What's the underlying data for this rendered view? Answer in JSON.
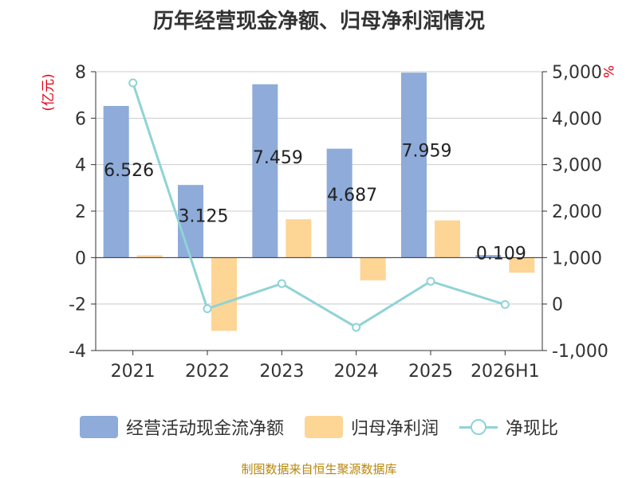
{
  "chart_data": {
    "type": "bar",
    "title": "历年经营现金净额、归母净利润情况",
    "categories": [
      "2021",
      "2022",
      "2023",
      "2024",
      "2025",
      "2026H1"
    ],
    "left_axis": {
      "label": "(亿元)",
      "min": -4,
      "max": 8,
      "ticks": [
        -4,
        -2,
        0,
        2,
        4,
        6,
        8
      ],
      "tick_labels": [
        "-4",
        "-2",
        "0",
        "2",
        "4",
        "6",
        "8"
      ]
    },
    "right_axis": {
      "label": "%",
      "min": -1000,
      "max": 5000,
      "ticks": [
        -1000,
        0,
        1000,
        2000,
        3000,
        4000,
        5000
      ],
      "tick_labels": [
        "-1,000",
        "0",
        "1,000",
        "2,000",
        "3,000",
        "4,000",
        "5,000"
      ]
    },
    "series": [
      {
        "name": "经营活动现金流净额",
        "type": "bar",
        "axis": "left",
        "color": "#8eabd9",
        "values": [
          6.526,
          3.125,
          7.459,
          4.687,
          7.959,
          0.109
        ],
        "labels": [
          "6.526",
          "3.125",
          "7.459",
          "4.687",
          "7.959",
          "0.109"
        ]
      },
      {
        "name": "归母净利润",
        "type": "bar",
        "axis": "left",
        "color": "#fdd595",
        "values": [
          0.1,
          -3.15,
          1.65,
          -0.98,
          1.6,
          -0.65
        ]
      },
      {
        "name": "净现比",
        "type": "line",
        "axis": "right",
        "color": "#8fd3d6",
        "values": [
          4760,
          -100,
          440,
          -500,
          490,
          -10
        ]
      }
    ],
    "grid": true,
    "legend_position": "bottom"
  },
  "source_note": "制图数据来自恒生聚源数据库"
}
